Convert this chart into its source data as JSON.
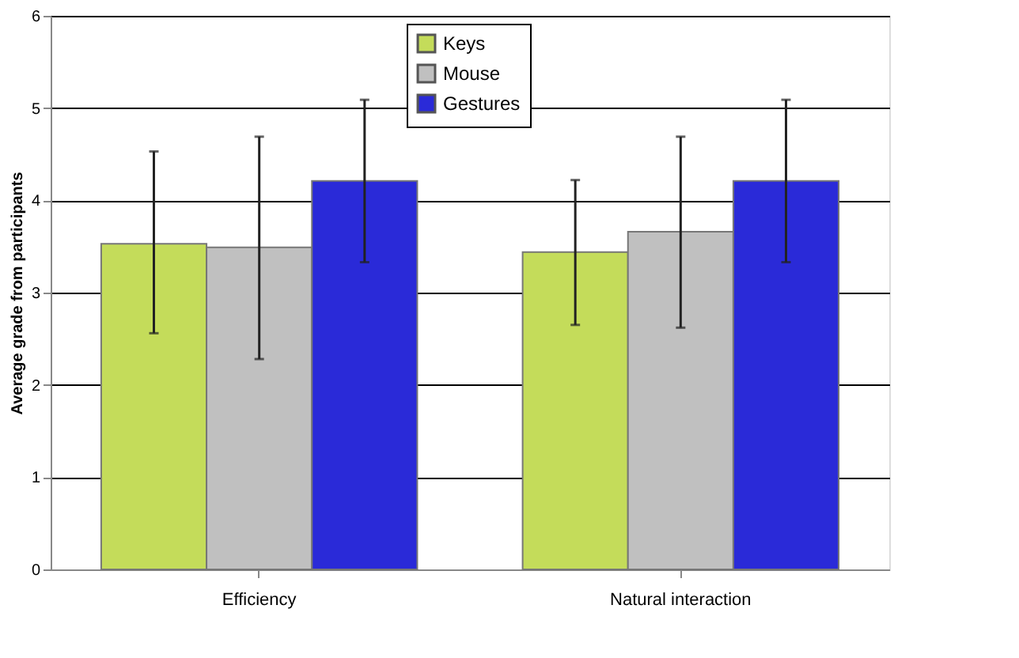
{
  "chart_data": {
    "type": "bar",
    "ylabel": "Average grade from participants",
    "categories": [
      "Efficiency",
      "Natural interaction"
    ],
    "series": [
      {
        "name": "Keys",
        "color": "#c4dc5a",
        "values": [
          3.53,
          3.44
        ],
        "errors": [
          [
            2.56,
            4.53
          ],
          [
            2.65,
            4.22
          ]
        ]
      },
      {
        "name": "Mouse",
        "color": "#c0c0c0",
        "values": [
          3.49,
          3.66
        ],
        "errors": [
          [
            2.28,
            4.69
          ],
          [
            2.62,
            4.69
          ]
        ]
      },
      {
        "name": "Gestures",
        "color": "#2a2ad8",
        "values": [
          4.21,
          4.21
        ],
        "errors": [
          [
            3.33,
            5.09
          ],
          [
            3.33,
            5.09
          ]
        ]
      }
    ],
    "ylim": [
      0,
      6
    ],
    "yticks": [
      0,
      1,
      2,
      3,
      4,
      5,
      6
    ],
    "grid": "y",
    "legend": "top"
  }
}
